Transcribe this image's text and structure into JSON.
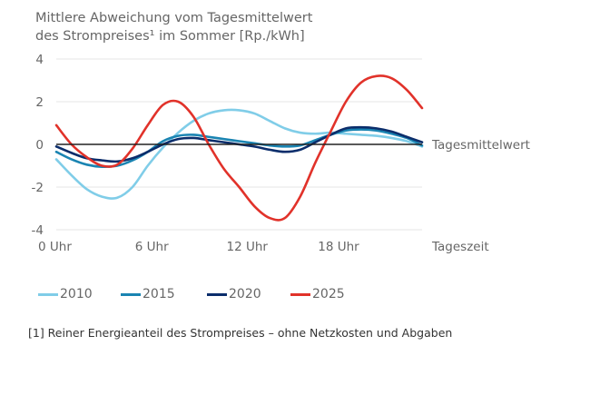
{
  "chart_data": {
    "type": "line",
    "title": [
      "Mittlere Abweichung vom Tagesmittelwert",
      "des Strompreises¹ im Sommer [Rp./kWh]"
    ],
    "xlabel": "Tageszeit",
    "ylabel": "",
    "zero_line_label": "Tagesmittelwert",
    "xlim": [
      0,
      24
    ],
    "ylim": [
      -4,
      4
    ],
    "yticks": [
      4,
      2,
      0,
      -2,
      -4
    ],
    "xticks": [
      {
        "value": 0,
        "label": "0 Uhr"
      },
      {
        "value": 6,
        "label": "6 Uhr"
      },
      {
        "value": 12,
        "label": "12 Uhr"
      },
      {
        "value": 18,
        "label": "18 Uhr"
      }
    ],
    "grid": "horizontal",
    "legend_position": "bottom",
    "x": [
      0,
      1,
      2,
      3,
      4,
      5,
      6,
      7,
      8,
      9,
      10,
      11,
      12,
      13,
      14,
      15,
      16,
      17,
      18,
      19,
      20,
      21,
      22,
      23,
      24
    ],
    "series": [
      {
        "name": "2010",
        "color": "#80cde8",
        "values": [
          -0.7,
          -1.45,
          -2.1,
          -2.45,
          -2.5,
          -2.0,
          -1.0,
          -0.15,
          0.55,
          1.1,
          1.45,
          1.6,
          1.6,
          1.45,
          1.1,
          0.75,
          0.55,
          0.5,
          0.55,
          0.5,
          0.45,
          0.4,
          0.3,
          0.15,
          -0.1
        ]
      },
      {
        "name": "2015",
        "color": "#1a84b2",
        "values": [
          -0.35,
          -0.7,
          -0.95,
          -1.05,
          -1.0,
          -0.75,
          -0.35,
          0.15,
          0.4,
          0.45,
          0.35,
          0.25,
          0.15,
          0.05,
          -0.05,
          -0.1,
          -0.05,
          0.2,
          0.45,
          0.65,
          0.7,
          0.65,
          0.5,
          0.3,
          -0.05
        ]
      },
      {
        "name": "2020",
        "color": "#0b2d6b",
        "values": [
          -0.1,
          -0.4,
          -0.65,
          -0.75,
          -0.8,
          -0.65,
          -0.35,
          0.0,
          0.25,
          0.3,
          0.2,
          0.1,
          0.0,
          -0.1,
          -0.25,
          -0.35,
          -0.25,
          0.1,
          0.45,
          0.75,
          0.8,
          0.75,
          0.6,
          0.35,
          0.1
        ]
      },
      {
        "name": "2025",
        "color": "#e1322a",
        "values": [
          0.9,
          0.0,
          -0.6,
          -1.0,
          -0.95,
          -0.2,
          0.9,
          1.85,
          2.0,
          1.3,
          0.0,
          -1.15,
          -2.0,
          -2.9,
          -3.45,
          -3.45,
          -2.45,
          -0.85,
          0.6,
          2.0,
          2.9,
          3.2,
          3.1,
          2.55,
          1.7
        ]
      }
    ],
    "footnote": "[1] Reiner Energieanteil des Strompreises – ohne Netzkosten und Abgaben"
  }
}
